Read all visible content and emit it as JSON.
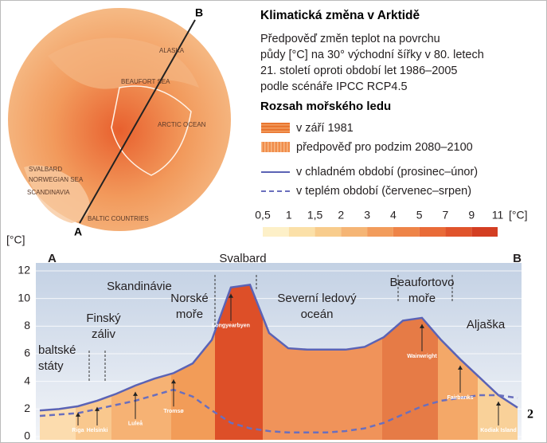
{
  "map": {
    "labels": [
      "ALASKA",
      "BEAUFORT SEA",
      "ARCTIC OCEAN",
      "SVALBARD",
      "NORWEGIAN SEA",
      "SCANDINAVIA",
      "BALTIC COUNTRIES"
    ],
    "point_a": "A",
    "point_b": "B"
  },
  "legend": {
    "title": "Klimatická změna v Arktidě",
    "description": [
      "Předpověď změn teplot na povrchu",
      "půdy [°C] na 30° východní šířky v 80. letech",
      "21. století oproti období let 1986–2005",
      "podle scénáře IPCC RCP4.5"
    ],
    "ice_title": "Rozsah mořského ledu",
    "ice_items": [
      "v září 1981",
      "předpověď pro podzim 2080–2100"
    ],
    "scale_labels": [
      "0,5",
      "1",
      "1,5",
      "2",
      "3",
      "4",
      "5",
      "7",
      "9",
      "11"
    ],
    "scale_unit": "[°C]"
  },
  "chart_data": {
    "type": "line",
    "y_label": "[°C]",
    "ylim": [
      0,
      12
    ],
    "yticks": [
      0,
      2,
      4,
      6,
      8,
      10,
      12
    ],
    "categories": [
      null,
      null,
      "Riga",
      "Helsinki",
      null,
      "Luleå",
      null,
      "Tromsø",
      null,
      null,
      "Longyearbyen",
      null,
      null,
      null,
      null,
      null,
      null,
      null,
      null,
      null,
      "Wainwright",
      null,
      "Fairbanks",
      null,
      "Kodiak Island",
      null
    ],
    "series": [
      {
        "name": "v chladném období (prosinec–únor)",
        "color": "#5b63b5",
        "style": "solid",
        "values": [
          1.9,
          2.0,
          2.2,
          2.6,
          3.1,
          3.7,
          4.2,
          4.6,
          5.3,
          7.0,
          10.8,
          11.0,
          7.5,
          6.4,
          6.3,
          6.3,
          6.3,
          6.5,
          7.2,
          8.4,
          8.6,
          7.0,
          5.6,
          4.3,
          3.0,
          2.1
        ]
      },
      {
        "name": "v teplém období (červenec–srpen)",
        "color": "#6a6fbd",
        "style": "dashed",
        "values": [
          1.5,
          1.6,
          1.7,
          2.0,
          2.3,
          2.6,
          3.0,
          3.4,
          2.9,
          1.9,
          1.0,
          0.6,
          0.4,
          0.3,
          0.3,
          0.3,
          0.4,
          0.6,
          1.0,
          1.6,
          2.2,
          2.6,
          2.8,
          3.0,
          3.0,
          2.8
        ]
      }
    ],
    "annotations": [
      "A",
      "B",
      "Svalbard",
      "Skandinávie",
      "baltské státy",
      "Finský záliv",
      "Norské moře",
      "Severní ledový oceán",
      "Beaufortovo moře",
      "Aljaška"
    ],
    "page_number": "2"
  }
}
